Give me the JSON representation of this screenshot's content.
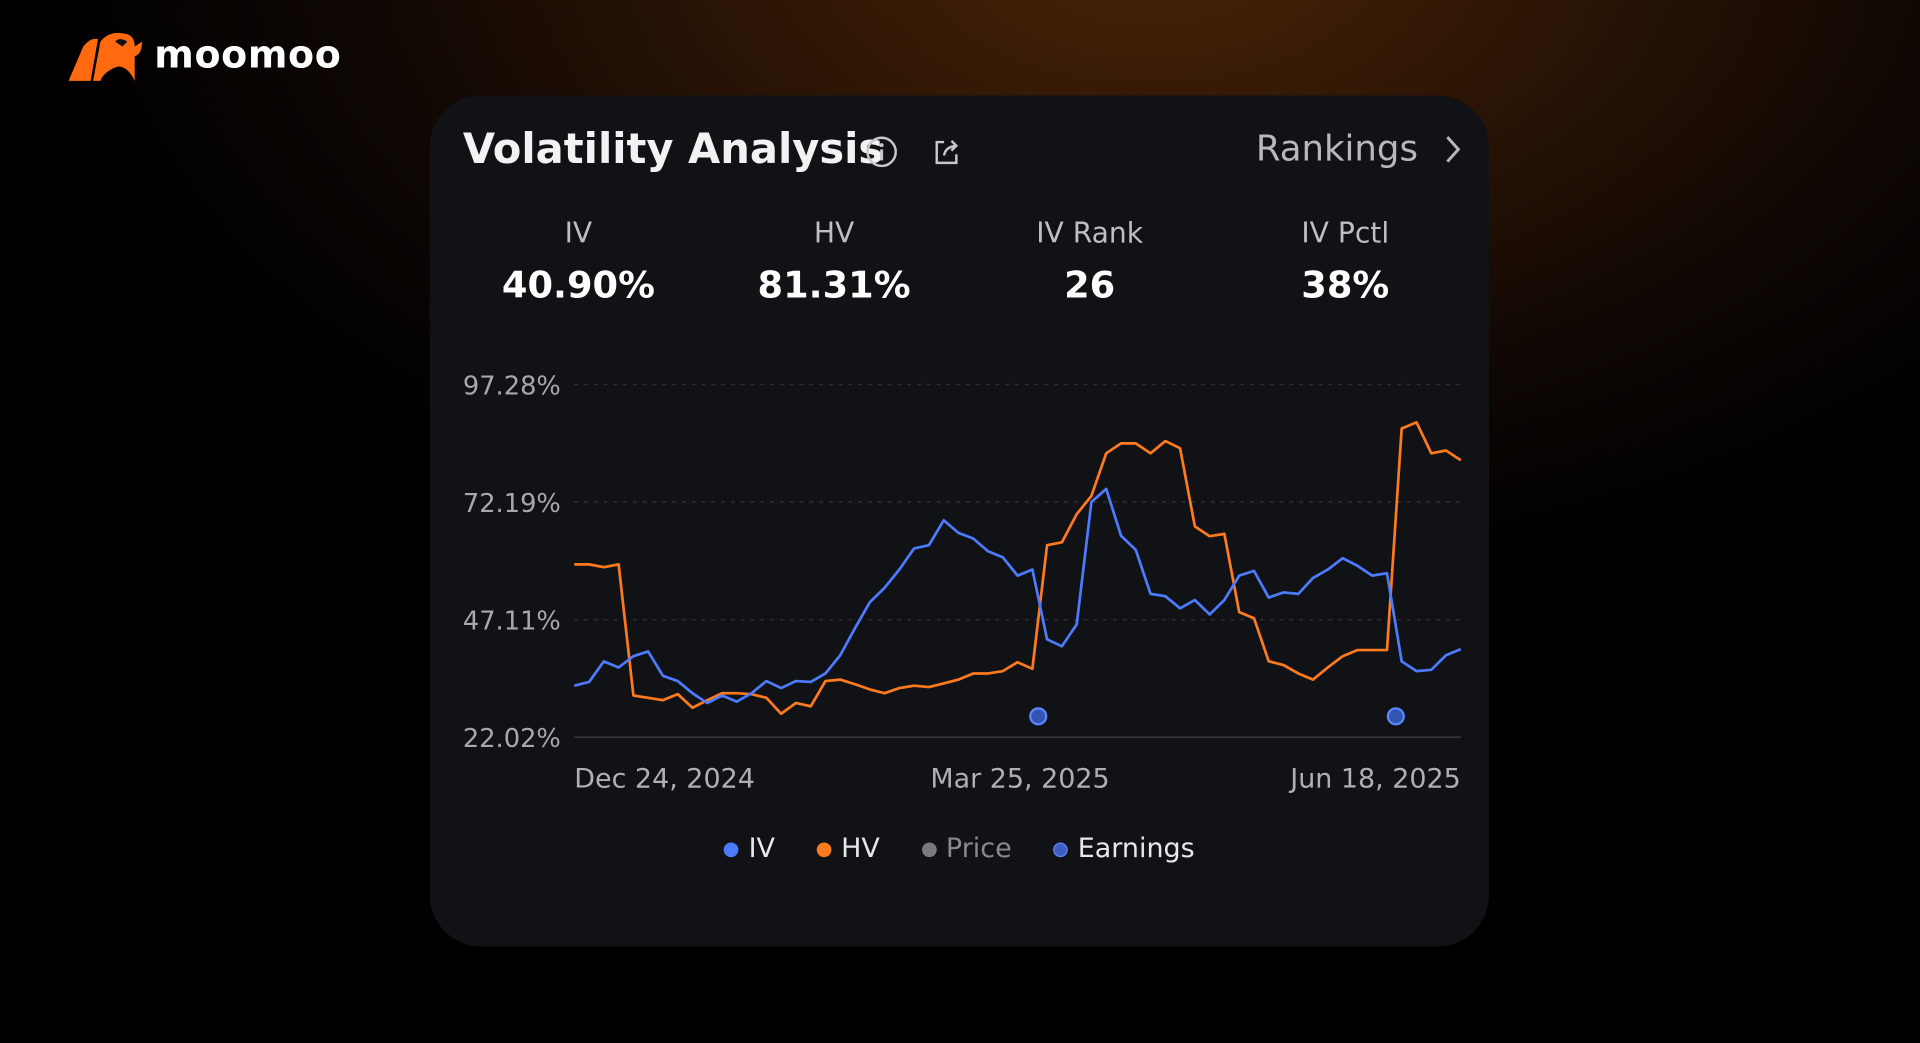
{
  "brand": {
    "name": "moomoo",
    "color": "#ff6a10"
  },
  "card": {
    "title": "Volatility Analysis",
    "rankings_label": "Rankings",
    "icons": [
      "info-icon",
      "share-icon",
      "chevron-right-icon"
    ]
  },
  "stats": [
    {
      "label": "IV",
      "value": "40.90%"
    },
    {
      "label": "HV",
      "value": "81.31%"
    },
    {
      "label": "IV Rank",
      "value": "26"
    },
    {
      "label": "IV Pctl",
      "value": "38%"
    }
  ],
  "legend": [
    {
      "label": "IV",
      "color": "#4d7bff"
    },
    {
      "label": "HV",
      "color": "#ff7a1c"
    },
    {
      "label": "Price",
      "color": "#7a7a7e"
    },
    {
      "label": "Earnings",
      "color": "#3f5fc0"
    }
  ],
  "chart_data": {
    "type": "line",
    "title": "",
    "xlabel": "",
    "ylabel": "",
    "ylim": [
      22.02,
      97.28
    ],
    "y_ticks": [
      "97.28%",
      "72.19%",
      "47.11%",
      "22.02%"
    ],
    "x_ticks": [
      "Dec 24, 2024",
      "Mar 25, 2025",
      "Jun 18, 2025"
    ],
    "grid": true,
    "legend_position": "bottom",
    "series": [
      {
        "name": "IV",
        "color": "#4d7bff",
        "values": [
          33.0,
          33.8,
          38.2,
          36.9,
          39.3,
          40.3,
          35.1,
          34.0,
          31.4,
          29.3,
          30.9,
          29.6,
          31.4,
          34.0,
          32.5,
          34.0,
          33.8,
          35.6,
          39.5,
          45.3,
          50.8,
          53.9,
          57.8,
          62.3,
          63.0,
          68.3,
          65.6,
          64.4,
          61.7,
          60.4,
          56.5,
          57.8,
          42.9,
          41.4,
          46.1,
          72.2,
          75.0,
          65.0,
          62.0,
          52.6,
          52.1,
          49.5,
          51.3,
          48.2,
          51.3,
          56.5,
          57.5,
          51.8,
          52.9,
          52.6,
          56.0,
          57.8,
          60.2,
          58.6,
          56.5,
          57.0,
          38.2,
          36.1,
          36.4,
          39.5,
          40.8
        ]
      },
      {
        "name": "HV",
        "color": "#ff7a1c",
        "values": [
          58.9,
          58.9,
          58.3,
          58.9,
          30.9,
          30.4,
          29.9,
          31.2,
          28.3,
          29.9,
          31.4,
          31.4,
          31.2,
          30.4,
          27.0,
          29.3,
          28.6,
          34.0,
          34.3,
          33.3,
          32.2,
          31.4,
          32.5,
          33.0,
          32.7,
          33.5,
          34.3,
          35.6,
          35.6,
          36.1,
          38.0,
          36.6,
          63.0,
          63.6,
          69.6,
          73.5,
          82.6,
          84.7,
          84.7,
          82.6,
          85.2,
          83.7,
          67.0,
          64.9,
          65.4,
          48.7,
          47.4,
          38.2,
          37.4,
          35.6,
          34.3,
          36.9,
          39.3,
          40.6,
          40.6,
          40.6,
          87.9,
          89.2,
          82.6,
          83.2,
          81.1
        ]
      }
    ],
    "earnings_index": [
      31.4,
      55.6
    ]
  }
}
